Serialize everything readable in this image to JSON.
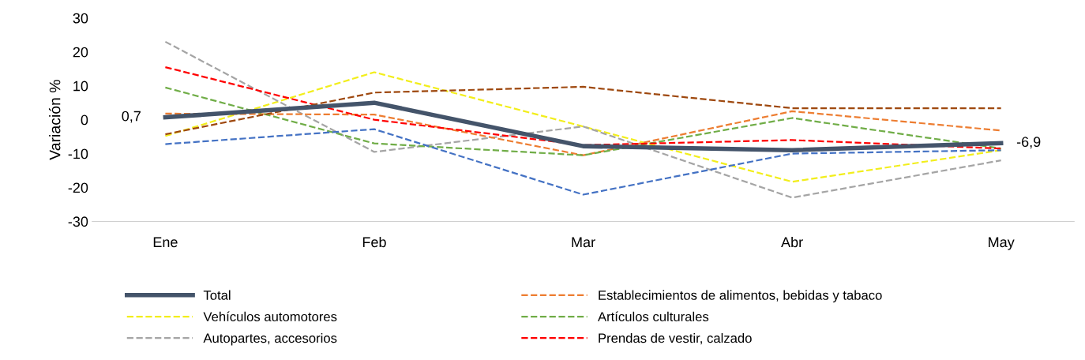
{
  "chart_data": {
    "type": "line",
    "ylabel": "Variación %",
    "categories": [
      "Ene",
      "Feb",
      "Mar",
      "Abr",
      "May"
    ],
    "ylim": [
      -30,
      30
    ],
    "yticks": [
      -30,
      -20,
      -10,
      0,
      10,
      20,
      30
    ],
    "grid": false,
    "legend": "bottom",
    "marker": "none",
    "series": [
      {
        "name": "Total",
        "color": "#44546a",
        "line_style": "solid",
        "values": [
          0.7,
          5,
          -7.8,
          -9,
          -6.9
        ],
        "value_labels": [
          "0,7",
          null,
          null,
          null,
          "-6,9"
        ]
      },
      {
        "name": "Vehículos automotores",
        "color": "#f2ee1c",
        "line_style": "dashed",
        "values": [
          -4.8,
          14,
          -2,
          -18.3,
          -9
        ]
      },
      {
        "name": "Autopartes, accesorios",
        "color": "#a5a5a5",
        "line_style": "dashed",
        "values": [
          23,
          -9.5,
          -2,
          -23,
          -12
        ]
      },
      {
        "name": "Establecimientos de alimentos, bebidas y tabaco",
        "color": "#ed7d31",
        "line_style": "dashed",
        "values": [
          1.8,
          1.5,
          -10.5,
          2.5,
          -3.2
        ]
      },
      {
        "name": "Artículos culturales",
        "color": "#70ad47",
        "line_style": "dashed",
        "values": [
          9.5,
          -7,
          -10.5,
          0.5,
          -8.5
        ]
      },
      {
        "name": "Prendas de vestir, calzado",
        "color": "#ff0000",
        "line_style": "dashed",
        "values": [
          15.5,
          0,
          -7.5,
          -6,
          -8.5
        ]
      },
      {
        "color": "#9e480e",
        "line_style": "dashed",
        "values": [
          -4.3,
          8,
          9.7,
          3.4,
          3.4
        ]
      },
      {
        "color": "#4472c4",
        "line_style": "dashed",
        "values": [
          -7.2,
          -2.8,
          -22.1,
          -10,
          -9
        ]
      }
    ]
  }
}
